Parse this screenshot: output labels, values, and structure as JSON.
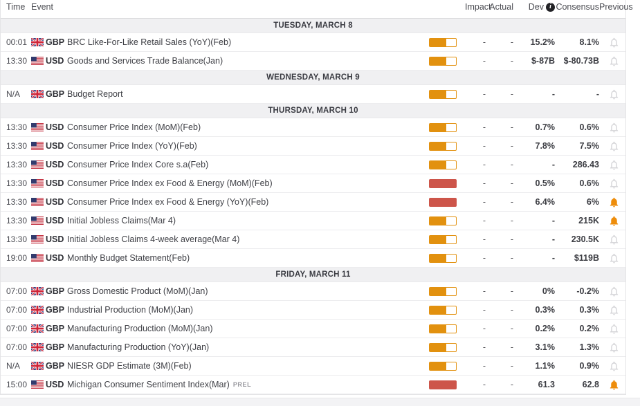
{
  "header": {
    "time": "Time",
    "event": "Event",
    "impact": "Impact",
    "actual": "Actual",
    "dev": "Dev",
    "info_icon": "i",
    "consensus": "Consensus",
    "previous": "Previous"
  },
  "colors": {
    "impact_medium": "#e2910f",
    "impact_high": "#cd554a",
    "bell_active": "#ee8d0b",
    "bell_inactive": "#d6d6d9",
    "section_bg": "#f0f0f2"
  },
  "sections": [
    {
      "date": "TUESDAY, MARCH 8",
      "rows": [
        {
          "time": "00:01",
          "currency": "GBP",
          "flag": "gb",
          "event": "BRC Like-For-Like Retail Sales (YoY)(Feb)",
          "suffix": "",
          "impact": "medium",
          "actual": "-",
          "dev": "-",
          "consensus": "15.2%",
          "previous": "8.1%",
          "alert": false
        },
        {
          "time": "13:30",
          "currency": "USD",
          "flag": "us",
          "event": "Goods and Services Trade Balance(Jan)",
          "suffix": "",
          "impact": "medium",
          "actual": "-",
          "dev": "-",
          "consensus": "$-87B",
          "previous": "$-80.73B",
          "alert": false
        }
      ]
    },
    {
      "date": "WEDNESDAY, MARCH 9",
      "rows": [
        {
          "time": "N/A",
          "currency": "GBP",
          "flag": "gb",
          "event": "Budget Report",
          "suffix": "",
          "impact": "medium",
          "actual": "-",
          "dev": "-",
          "consensus": "-",
          "previous": "-",
          "alert": false
        }
      ]
    },
    {
      "date": "THURSDAY, MARCH 10",
      "rows": [
        {
          "time": "13:30",
          "currency": "USD",
          "flag": "us",
          "event": "Consumer Price Index (MoM)(Feb)",
          "suffix": "",
          "impact": "medium",
          "actual": "-",
          "dev": "-",
          "consensus": "0.7%",
          "previous": "0.6%",
          "alert": false
        },
        {
          "time": "13:30",
          "currency": "USD",
          "flag": "us",
          "event": "Consumer Price Index (YoY)(Feb)",
          "suffix": "",
          "impact": "medium",
          "actual": "-",
          "dev": "-",
          "consensus": "7.8%",
          "previous": "7.5%",
          "alert": false
        },
        {
          "time": "13:30",
          "currency": "USD",
          "flag": "us",
          "event": "Consumer Price Index Core s.a(Feb)",
          "suffix": "",
          "impact": "medium",
          "actual": "-",
          "dev": "-",
          "consensus": "-",
          "previous": "286.43",
          "alert": false
        },
        {
          "time": "13:30",
          "currency": "USD",
          "flag": "us",
          "event": "Consumer Price Index ex Food & Energy (MoM)(Feb)",
          "suffix": "",
          "impact": "high",
          "actual": "-",
          "dev": "-",
          "consensus": "0.5%",
          "previous": "0.6%",
          "alert": false
        },
        {
          "time": "13:30",
          "currency": "USD",
          "flag": "us",
          "event": "Consumer Price Index ex Food & Energy (YoY)(Feb)",
          "suffix": "",
          "impact": "high",
          "actual": "-",
          "dev": "-",
          "consensus": "6.4%",
          "previous": "6%",
          "alert": true
        },
        {
          "time": "13:30",
          "currency": "USD",
          "flag": "us",
          "event": "Initial Jobless Claims(Mar 4)",
          "suffix": "",
          "impact": "medium",
          "actual": "-",
          "dev": "-",
          "consensus": "-",
          "previous": "215K",
          "alert": true
        },
        {
          "time": "13:30",
          "currency": "USD",
          "flag": "us",
          "event": "Initial Jobless Claims 4-week average(Mar 4)",
          "suffix": "",
          "impact": "medium",
          "actual": "-",
          "dev": "-",
          "consensus": "-",
          "previous": "230.5K",
          "alert": false
        },
        {
          "time": "19:00",
          "currency": "USD",
          "flag": "us",
          "event": "Monthly Budget Statement(Feb)",
          "suffix": "",
          "impact": "medium",
          "actual": "-",
          "dev": "-",
          "consensus": "-",
          "previous": "$119B",
          "alert": false
        }
      ]
    },
    {
      "date": "FRIDAY, MARCH 11",
      "rows": [
        {
          "time": "07:00",
          "currency": "GBP",
          "flag": "gb",
          "event": "Gross Domestic Product (MoM)(Jan)",
          "suffix": "",
          "impact": "medium",
          "actual": "-",
          "dev": "-",
          "consensus": "0%",
          "previous": "-0.2%",
          "alert": false
        },
        {
          "time": "07:00",
          "currency": "GBP",
          "flag": "gb",
          "event": "Industrial Production (MoM)(Jan)",
          "suffix": "",
          "impact": "medium",
          "actual": "-",
          "dev": "-",
          "consensus": "0.3%",
          "previous": "0.3%",
          "alert": false
        },
        {
          "time": "07:00",
          "currency": "GBP",
          "flag": "gb",
          "event": "Manufacturing Production (MoM)(Jan)",
          "suffix": "",
          "impact": "medium",
          "actual": "-",
          "dev": "-",
          "consensus": "0.2%",
          "previous": "0.2%",
          "alert": false
        },
        {
          "time": "07:00",
          "currency": "GBP",
          "flag": "gb",
          "event": "Manufacturing Production (YoY)(Jan)",
          "suffix": "",
          "impact": "medium",
          "actual": "-",
          "dev": "-",
          "consensus": "3.1%",
          "previous": "1.3%",
          "alert": false
        },
        {
          "time": "N/A",
          "currency": "GBP",
          "flag": "gb",
          "event": "NIESR GDP Estimate (3M)(Feb)",
          "suffix": "",
          "impact": "medium",
          "actual": "-",
          "dev": "-",
          "consensus": "1.1%",
          "previous": "0.9%",
          "alert": false
        },
        {
          "time": "15:00",
          "currency": "USD",
          "flag": "us",
          "event": "Michigan Consumer Sentiment Index(Mar)",
          "suffix": "PREL",
          "impact": "high",
          "actual": "-",
          "dev": "-",
          "consensus": "61.3",
          "previous": "62.8",
          "alert": true
        }
      ]
    }
  ]
}
